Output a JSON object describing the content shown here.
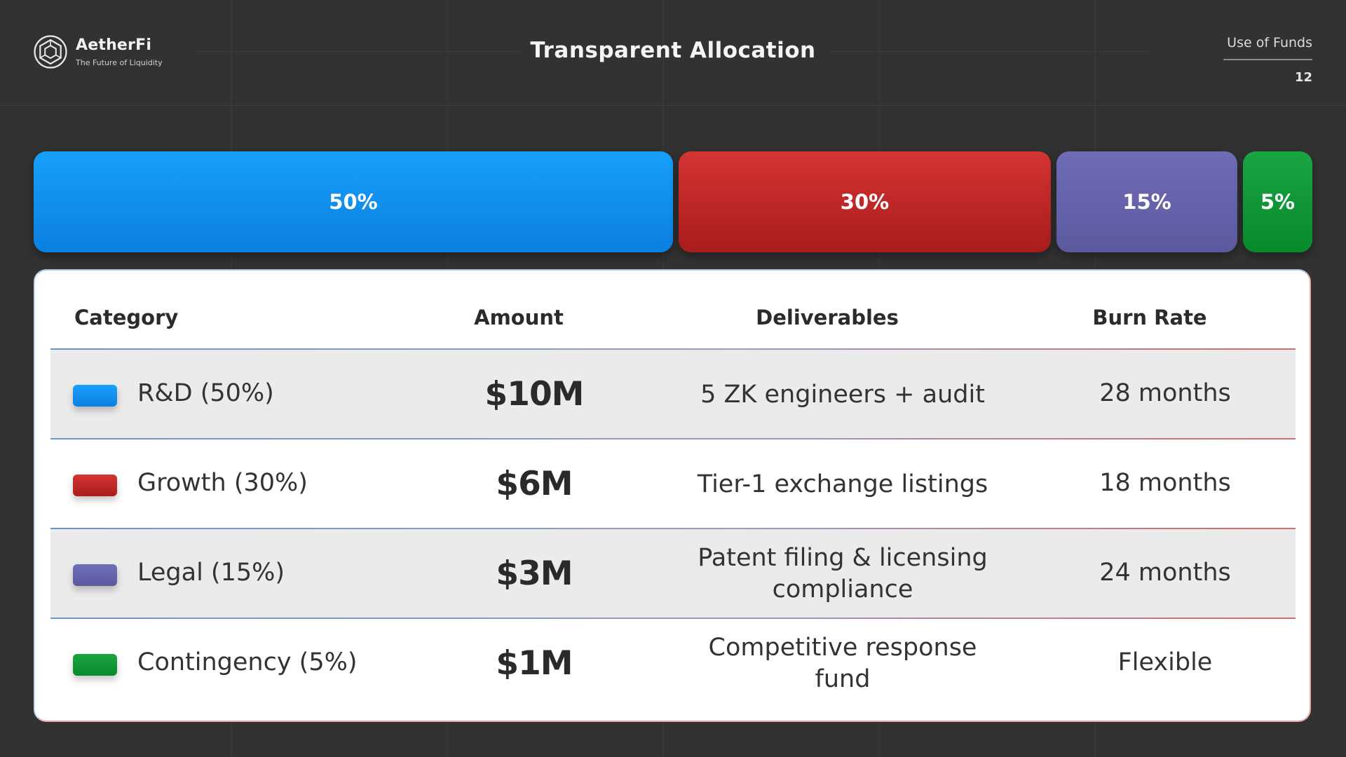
{
  "brand": {
    "name": "AetherFi",
    "tagline": "The Future of Liquidity",
    "logo_icon": "hexagon-logo-icon"
  },
  "slide": {
    "title": "Transparent Allocation",
    "section": "Use of Funds",
    "page_number": "12"
  },
  "allocation_bar": [
    {
      "label": "50%",
      "share": 50,
      "color": "#128FF0"
    },
    {
      "label": "30%",
      "share": 30,
      "color": "#C02828"
    },
    {
      "label": "15%",
      "share": 15,
      "color": "#6664AC"
    },
    {
      "label": "5%",
      "share": 5,
      "color": "#0F9738"
    }
  ],
  "table": {
    "headers": {
      "category": "Category",
      "amount": "Amount",
      "deliverables": "Deliverables",
      "burn_rate": "Burn Rate"
    },
    "rows": [
      {
        "category": "R&D (50%)",
        "amount": "$10M",
        "deliverables": "5 ZK engineers + audit",
        "burn_rate": "28 months",
        "color": "#128FF0"
      },
      {
        "category": "Growth (30%)",
        "amount": "$6M",
        "deliverables": "Tier-1 exchange listings",
        "burn_rate": "18 months",
        "color": "#C02828"
      },
      {
        "category": "Legal (15%)",
        "amount": "$3M",
        "deliverables": "Patent filing & licensing compliance",
        "burn_rate": "24 months",
        "color": "#6664AC"
      },
      {
        "category": "Contingency (5%)",
        "amount": "$1M",
        "deliverables": "Competitive response fund",
        "burn_rate": "Flexible",
        "color": "#0F9738"
      }
    ]
  }
}
